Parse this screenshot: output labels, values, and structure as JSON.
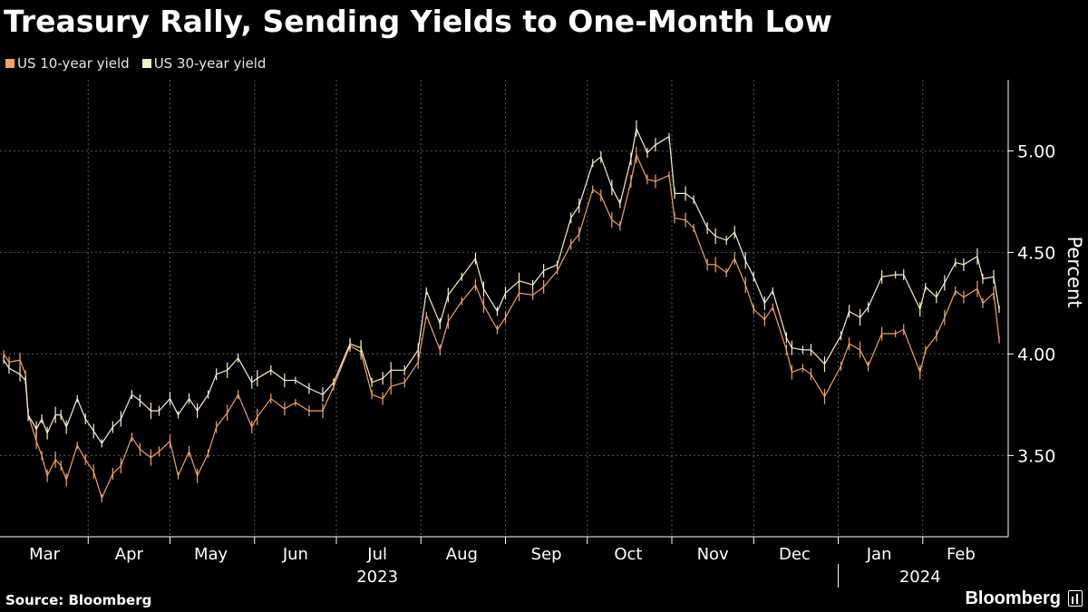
{
  "title": "Treasury Rally, Sending Yields to One-Month Low",
  "source": "Source: Bloomberg",
  "brand": "Bloomberg",
  "colors": {
    "background": "#000000",
    "us10": "#f4a261",
    "us30": "#f8f0c8",
    "grid": "#5a5a5a",
    "axis": "#ffffff"
  },
  "chart_data": {
    "type": "line",
    "title": "Treasury Rally, Sending Yields to One-Month Low",
    "xlabel": "",
    "ylabel": "Percent",
    "ylim": [
      3.1,
      5.35
    ],
    "yticks": [
      3.5,
      4.0,
      4.5,
      5.0
    ],
    "ytick_labels": [
      "3.50",
      "4.00",
      "4.50",
      "5.00"
    ],
    "grid": true,
    "legend_position": "top-left",
    "x_range": [
      "2023-03-01",
      "2024-02-29"
    ],
    "month_labels": [
      "Mar",
      "Apr",
      "May",
      "Jun",
      "Jul",
      "Aug",
      "Sep",
      "Oct",
      "Nov",
      "Dec",
      "Jan",
      "Feb"
    ],
    "month_label_dates": [
      "2023-03-16",
      "2023-04-16",
      "2023-05-16",
      "2023-06-16",
      "2023-07-16",
      "2023-08-16",
      "2023-09-16",
      "2023-10-16",
      "2023-11-16",
      "2023-12-16",
      "2024-01-16",
      "2024-02-15"
    ],
    "month_tick_dates": [
      "2023-04-01",
      "2023-05-01",
      "2023-06-01",
      "2023-07-01",
      "2023-08-01",
      "2023-09-01",
      "2023-10-01",
      "2023-11-01",
      "2023-12-01",
      "2024-01-01",
      "2024-02-01"
    ],
    "year_labels": [
      {
        "label": "2023",
        "date": "2023-07-16"
      },
      {
        "label": "2024",
        "date": "2024-01-31"
      }
    ],
    "year_divider_date": "2024-01-01",
    "series": [
      {
        "name": "US 10-year yield",
        "points": [
          [
            "2023-03-01",
            4.0
          ],
          [
            "2023-03-03",
            3.96
          ],
          [
            "2023-03-07",
            3.97
          ],
          [
            "2023-03-09",
            3.9
          ],
          [
            "2023-03-10",
            3.7
          ],
          [
            "2023-03-13",
            3.57
          ],
          [
            "2023-03-15",
            3.5
          ],
          [
            "2023-03-17",
            3.4
          ],
          [
            "2023-03-20",
            3.48
          ],
          [
            "2023-03-22",
            3.45
          ],
          [
            "2023-03-24",
            3.38
          ],
          [
            "2023-03-28",
            3.55
          ],
          [
            "2023-03-31",
            3.48
          ],
          [
            "2023-04-03",
            3.42
          ],
          [
            "2023-04-06",
            3.29
          ],
          [
            "2023-04-10",
            3.41
          ],
          [
            "2023-04-13",
            3.45
          ],
          [
            "2023-04-17",
            3.59
          ],
          [
            "2023-04-20",
            3.53
          ],
          [
            "2023-04-24",
            3.49
          ],
          [
            "2023-04-27",
            3.52
          ],
          [
            "2023-05-01",
            3.57
          ],
          [
            "2023-05-04",
            3.4
          ],
          [
            "2023-05-08",
            3.52
          ],
          [
            "2023-05-11",
            3.4
          ],
          [
            "2023-05-15",
            3.51
          ],
          [
            "2023-05-18",
            3.64
          ],
          [
            "2023-05-22",
            3.71
          ],
          [
            "2023-05-26",
            3.8
          ],
          [
            "2023-05-31",
            3.64
          ],
          [
            "2023-06-02",
            3.69
          ],
          [
            "2023-06-07",
            3.78
          ],
          [
            "2023-06-12",
            3.73
          ],
          [
            "2023-06-16",
            3.76
          ],
          [
            "2023-06-21",
            3.72
          ],
          [
            "2023-06-26",
            3.72
          ],
          [
            "2023-06-30",
            3.84
          ],
          [
            "2023-07-06",
            4.04
          ],
          [
            "2023-07-10",
            4.01
          ],
          [
            "2023-07-14",
            3.8
          ],
          [
            "2023-07-18",
            3.78
          ],
          [
            "2023-07-21",
            3.84
          ],
          [
            "2023-07-26",
            3.86
          ],
          [
            "2023-07-31",
            3.96
          ],
          [
            "2023-08-03",
            4.19
          ],
          [
            "2023-08-08",
            4.02
          ],
          [
            "2023-08-11",
            4.16
          ],
          [
            "2023-08-16",
            4.26
          ],
          [
            "2023-08-21",
            4.34
          ],
          [
            "2023-08-24",
            4.24
          ],
          [
            "2023-08-29",
            4.12
          ],
          [
            "2023-09-01",
            4.18
          ],
          [
            "2023-09-06",
            4.3
          ],
          [
            "2023-09-11",
            4.29
          ],
          [
            "2023-09-15",
            4.33
          ],
          [
            "2023-09-20",
            4.41
          ],
          [
            "2023-09-25",
            4.54
          ],
          [
            "2023-09-28",
            4.59
          ],
          [
            "2023-10-03",
            4.81
          ],
          [
            "2023-10-06",
            4.78
          ],
          [
            "2023-10-10",
            4.66
          ],
          [
            "2023-10-13",
            4.63
          ],
          [
            "2023-10-17",
            4.85
          ],
          [
            "2023-10-19",
            4.98
          ],
          [
            "2023-10-23",
            4.86
          ],
          [
            "2023-10-26",
            4.85
          ],
          [
            "2023-10-31",
            4.88
          ],
          [
            "2023-11-02",
            4.67
          ],
          [
            "2023-11-06",
            4.66
          ],
          [
            "2023-11-09",
            4.62
          ],
          [
            "2023-11-14",
            4.44
          ],
          [
            "2023-11-17",
            4.44
          ],
          [
            "2023-11-21",
            4.4
          ],
          [
            "2023-11-24",
            4.47
          ],
          [
            "2023-11-28",
            4.34
          ],
          [
            "2023-12-01",
            4.22
          ],
          [
            "2023-12-05",
            4.17
          ],
          [
            "2023-12-08",
            4.23
          ],
          [
            "2023-12-13",
            4.02
          ],
          [
            "2023-12-15",
            3.91
          ],
          [
            "2023-12-19",
            3.93
          ],
          [
            "2023-12-22",
            3.9
          ],
          [
            "2023-12-27",
            3.79
          ],
          [
            "2024-01-02",
            3.94
          ],
          [
            "2024-01-05",
            4.05
          ],
          [
            "2024-01-09",
            4.02
          ],
          [
            "2024-01-12",
            3.94
          ],
          [
            "2024-01-17",
            4.1
          ],
          [
            "2024-01-22",
            4.1
          ],
          [
            "2024-01-25",
            4.12
          ],
          [
            "2024-01-31",
            3.91
          ],
          [
            "2024-02-02",
            4.02
          ],
          [
            "2024-02-06",
            4.09
          ],
          [
            "2024-02-09",
            4.18
          ],
          [
            "2024-02-13",
            4.31
          ],
          [
            "2024-02-16",
            4.28
          ],
          [
            "2024-02-21",
            4.32
          ],
          [
            "2024-02-23",
            4.25
          ],
          [
            "2024-02-27",
            4.3
          ],
          [
            "2024-02-29",
            4.07
          ]
        ]
      },
      {
        "name": "US 30-year yield",
        "points": [
          [
            "2023-03-01",
            3.97
          ],
          [
            "2023-03-03",
            3.93
          ],
          [
            "2023-03-07",
            3.9
          ],
          [
            "2023-03-09",
            3.87
          ],
          [
            "2023-03-10",
            3.7
          ],
          [
            "2023-03-13",
            3.63
          ],
          [
            "2023-03-15",
            3.68
          ],
          [
            "2023-03-17",
            3.61
          ],
          [
            "2023-03-20",
            3.7
          ],
          [
            "2023-03-22",
            3.7
          ],
          [
            "2023-03-24",
            3.64
          ],
          [
            "2023-03-28",
            3.78
          ],
          [
            "2023-03-31",
            3.68
          ],
          [
            "2023-04-03",
            3.62
          ],
          [
            "2023-04-06",
            3.56
          ],
          [
            "2023-04-10",
            3.64
          ],
          [
            "2023-04-13",
            3.68
          ],
          [
            "2023-04-17",
            3.8
          ],
          [
            "2023-04-20",
            3.77
          ],
          [
            "2023-04-24",
            3.72
          ],
          [
            "2023-04-27",
            3.72
          ],
          [
            "2023-05-01",
            3.78
          ],
          [
            "2023-05-04",
            3.7
          ],
          [
            "2023-05-08",
            3.78
          ],
          [
            "2023-05-11",
            3.72
          ],
          [
            "2023-05-15",
            3.8
          ],
          [
            "2023-05-18",
            3.9
          ],
          [
            "2023-05-22",
            3.92
          ],
          [
            "2023-05-26",
            3.98
          ],
          [
            "2023-05-31",
            3.86
          ],
          [
            "2023-06-02",
            3.88
          ],
          [
            "2023-06-07",
            3.92
          ],
          [
            "2023-06-12",
            3.87
          ],
          [
            "2023-06-16",
            3.87
          ],
          [
            "2023-06-21",
            3.83
          ],
          [
            "2023-06-26",
            3.8
          ],
          [
            "2023-06-30",
            3.86
          ],
          [
            "2023-07-06",
            4.05
          ],
          [
            "2023-07-10",
            4.03
          ],
          [
            "2023-07-14",
            3.86
          ],
          [
            "2023-07-18",
            3.88
          ],
          [
            "2023-07-21",
            3.92
          ],
          [
            "2023-07-26",
            3.92
          ],
          [
            "2023-07-31",
            4.02
          ],
          [
            "2023-08-03",
            4.31
          ],
          [
            "2023-08-08",
            4.15
          ],
          [
            "2023-08-11",
            4.29
          ],
          [
            "2023-08-16",
            4.38
          ],
          [
            "2023-08-21",
            4.47
          ],
          [
            "2023-08-24",
            4.32
          ],
          [
            "2023-08-29",
            4.21
          ],
          [
            "2023-09-01",
            4.3
          ],
          [
            "2023-09-06",
            4.36
          ],
          [
            "2023-09-11",
            4.34
          ],
          [
            "2023-09-15",
            4.41
          ],
          [
            "2023-09-20",
            4.44
          ],
          [
            "2023-09-25",
            4.67
          ],
          [
            "2023-09-28",
            4.73
          ],
          [
            "2023-10-03",
            4.94
          ],
          [
            "2023-10-06",
            4.97
          ],
          [
            "2023-10-10",
            4.82
          ],
          [
            "2023-10-13",
            4.74
          ],
          [
            "2023-10-17",
            4.96
          ],
          [
            "2023-10-19",
            5.11
          ],
          [
            "2023-10-23",
            4.99
          ],
          [
            "2023-10-26",
            5.03
          ],
          [
            "2023-10-31",
            5.07
          ],
          [
            "2023-11-02",
            4.79
          ],
          [
            "2023-11-06",
            4.79
          ],
          [
            "2023-11-09",
            4.76
          ],
          [
            "2023-11-14",
            4.62
          ],
          [
            "2023-11-17",
            4.58
          ],
          [
            "2023-11-21",
            4.56
          ],
          [
            "2023-11-24",
            4.6
          ],
          [
            "2023-11-28",
            4.46
          ],
          [
            "2023-12-01",
            4.38
          ],
          [
            "2023-12-05",
            4.25
          ],
          [
            "2023-12-08",
            4.31
          ],
          [
            "2023-12-13",
            4.08
          ],
          [
            "2023-12-15",
            4.03
          ],
          [
            "2023-12-19",
            4.02
          ],
          [
            "2023-12-22",
            4.02
          ],
          [
            "2023-12-27",
            3.95
          ],
          [
            "2024-01-02",
            4.09
          ],
          [
            "2024-01-05",
            4.21
          ],
          [
            "2024-01-09",
            4.18
          ],
          [
            "2024-01-12",
            4.23
          ],
          [
            "2024-01-17",
            4.38
          ],
          [
            "2024-01-22",
            4.39
          ],
          [
            "2024-01-25",
            4.39
          ],
          [
            "2024-01-31",
            4.22
          ],
          [
            "2024-02-02",
            4.33
          ],
          [
            "2024-02-06",
            4.28
          ],
          [
            "2024-02-09",
            4.35
          ],
          [
            "2024-02-13",
            4.45
          ],
          [
            "2024-02-16",
            4.44
          ],
          [
            "2024-02-21",
            4.48
          ],
          [
            "2024-02-23",
            4.37
          ],
          [
            "2024-02-27",
            4.38
          ],
          [
            "2024-02-29",
            4.22
          ]
        ]
      }
    ]
  }
}
